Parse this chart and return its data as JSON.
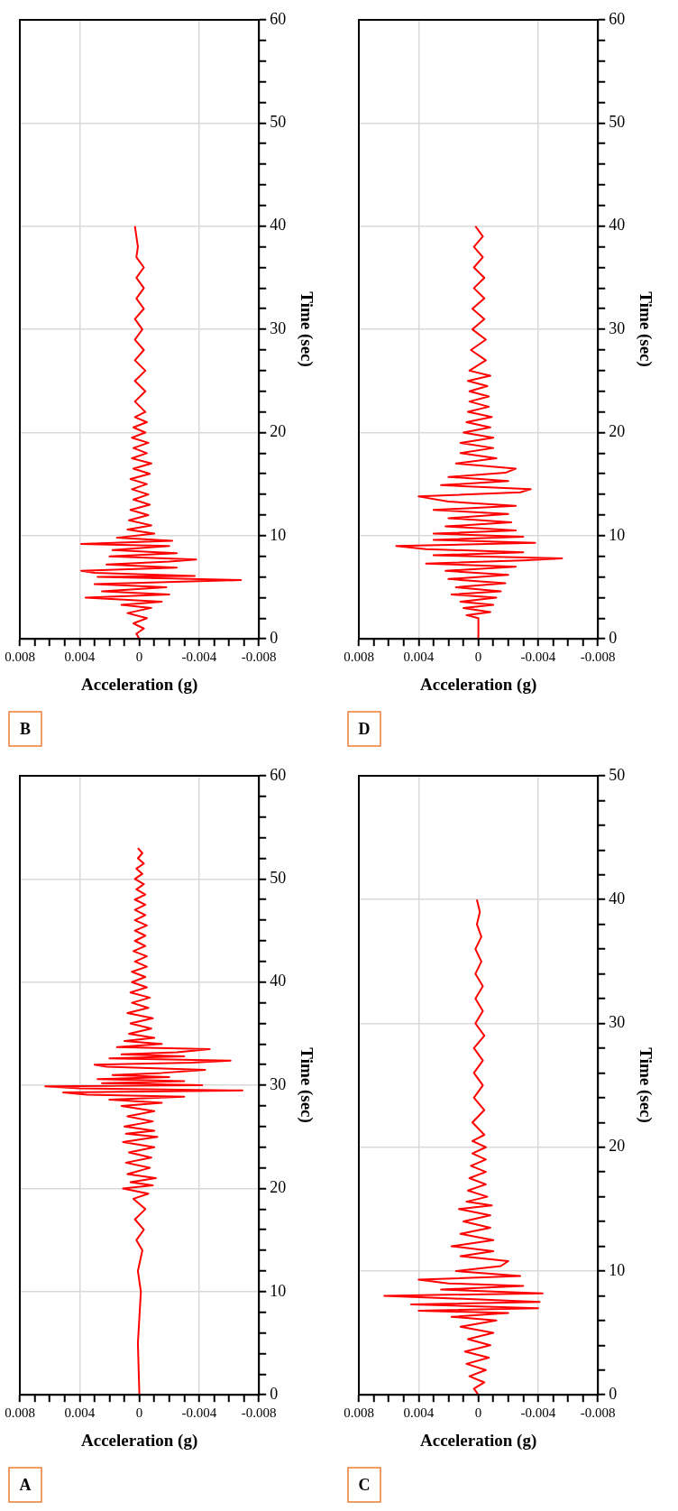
{
  "chart_data": [
    {
      "type": "line",
      "orientation": "horizontal",
      "title": "A",
      "xlabel": "Acceleration (g)",
      "ylabel": "Time (sec)",
      "grid": true,
      "xlim": [
        0.008,
        -0.008
      ],
      "ylim": [
        0,
        60
      ],
      "yticks": [
        0,
        {
          "value": 2,
          "label": null
        },
        {
          "value": 4,
          "label": null
        },
        {
          "value": 6,
          "label": null
        },
        {
          "value": 8,
          "label": null
        },
        10,
        {
          "value": 12,
          "label": null
        },
        {
          "value": 14,
          "label": null
        },
        {
          "value": 16,
          "label": null
        },
        {
          "value": 18,
          "label": null
        },
        20,
        {
          "value": 22,
          "label": null
        },
        {
          "value": 24,
          "label": null
        },
        {
          "value": 26,
          "label": null
        },
        {
          "value": 28,
          "label": null
        },
        30,
        {
          "value": 32,
          "label": null
        },
        {
          "value": 34,
          "label": null
        },
        {
          "value": 36,
          "label": null
        },
        {
          "value": 38,
          "label": null
        },
        40,
        {
          "value": 42,
          "label": null
        },
        {
          "value": 44,
          "label": null
        },
        {
          "value": 46,
          "label": null
        },
        {
          "value": 48,
          "label": null
        },
        50,
        {
          "value": 52,
          "label": null
        },
        {
          "value": 54,
          "label": null
        },
        {
          "value": 56,
          "label": null
        },
        {
          "value": 58,
          "label": null
        },
        60
      ],
      "xticks": [
        -0.008,
        {
          "value": -0.007,
          "label": null
        },
        {
          "value": -0.006,
          "label": null
        },
        {
          "value": -0.005,
          "label": null
        },
        -0.004,
        {
          "value": -0.003,
          "label": null
        },
        {
          "value": -0.002,
          "label": null
        },
        {
          "value": -0.001,
          "label": null
        },
        0,
        {
          "value": 0.001,
          "label": null
        },
        {
          "value": 0.002,
          "label": null
        },
        {
          "value": 0.003,
          "label": null
        },
        0.004,
        {
          "value": 0.005,
          "label": null
        },
        {
          "value": 0.006,
          "label": null
        },
        {
          "value": 0.007,
          "label": null
        },
        0.008
      ],
      "x": [
        0,
        5,
        10,
        12,
        14,
        15,
        16,
        17,
        18,
        19,
        19.5,
        20,
        20.3,
        20.6,
        21,
        21.4,
        22,
        22.5,
        23,
        23.5,
        24,
        24.5,
        25,
        25.3,
        25.6,
        26,
        26.5,
        27,
        27.5,
        28,
        28.3,
        28.6,
        28.9,
        29.1,
        29.3,
        29.5,
        29.7,
        29.9,
        30.0,
        30.2,
        30.4,
        30.6,
        30.8,
        31.0,
        31.2,
        31.5,
        31.8,
        32.0,
        32.2,
        32.4,
        32.6,
        32.8,
        33.0,
        33.2,
        33.5,
        33.7,
        34.0,
        34.3,
        34.6,
        35,
        35.5,
        36,
        36.5,
        37,
        37.5,
        38,
        38.5,
        39,
        39.5,
        40,
        40.5,
        41,
        41.5,
        42,
        42.5,
        43,
        43.5,
        44,
        44.5,
        45,
        45.5,
        46,
        46.5,
        47,
        47.5,
        48,
        48.5,
        49,
        49.5,
        50,
        50.5,
        51,
        51.5,
        52,
        52.5,
        53
      ],
      "series": [
        {
          "color": "#ff0000",
          "values": [
            0,
            0.0001,
            -0.0001,
            0.0001,
            -0.0002,
            0.0002,
            -0.0003,
            0.0003,
            -0.0004,
            0.0004,
            -0.0006,
            0.0011,
            -0.0009,
            0.0006,
            -0.0011,
            0.0008,
            -0.0007,
            0.0009,
            -0.0008,
            0.0007,
            -0.001,
            0.0011,
            -0.0012,
            0.0009,
            -0.001,
            0.001,
            -0.0009,
            0.0008,
            -0.001,
            0.0012,
            -0.0015,
            0.002,
            -0.003,
            0.0035,
            0.0051,
            -0.0069,
            0.004,
            0.0063,
            -0.0042,
            0.0025,
            -0.003,
            0.0028,
            -0.002,
            0.0018,
            -0.0015,
            -0.0044,
            0.0022,
            0.003,
            -0.0035,
            -0.0061,
            0.002,
            -0.003,
            0.0012,
            -0.0025,
            -0.0047,
            0.0015,
            -0.0015,
            0.001,
            -0.001,
            0.0007,
            -0.0008,
            0.0006,
            -0.0009,
            0.0008,
            -0.0006,
            0.0005,
            -0.0007,
            0.0006,
            -0.0005,
            0.0005,
            -0.0004,
            0.0005,
            -0.0005,
            0.0003,
            -0.0005,
            0.0004,
            -0.0004,
            0.0003,
            -0.0004,
            0.0003,
            -0.0005,
            0.0003,
            -0.0004,
            0.0003,
            -0.0004,
            0.0003,
            -0.0004,
            0.0002,
            -0.0003,
            0.0003,
            -0.0002,
            0.0002,
            -0.0003,
            0.0001,
            -0.0002,
            0.0001
          ]
        }
      ]
    },
    {
      "type": "line",
      "orientation": "horizontal",
      "title": "B",
      "xlabel": "Acceleration (g)",
      "ylabel": "Time (sec)",
      "grid": true,
      "xlim": [
        0.008,
        -0.008
      ],
      "ylim": [
        0,
        60
      ],
      "yticks": [
        0,
        {
          "value": 2,
          "label": null
        },
        {
          "value": 4,
          "label": null
        },
        {
          "value": 6,
          "label": null
        },
        {
          "value": 8,
          "label": null
        },
        10,
        {
          "value": 12,
          "label": null
        },
        {
          "value": 14,
          "label": null
        },
        {
          "value": 16,
          "label": null
        },
        {
          "value": 18,
          "label": null
        },
        20,
        {
          "value": 22,
          "label": null
        },
        {
          "value": 24,
          "label": null
        },
        {
          "value": 26,
          "label": null
        },
        {
          "value": 28,
          "label": null
        },
        30,
        {
          "value": 32,
          "label": null
        },
        {
          "value": 34,
          "label": null
        },
        {
          "value": 36,
          "label": null
        },
        {
          "value": 38,
          "label": null
        },
        40,
        {
          "value": 42,
          "label": null
        },
        {
          "value": 44,
          "label": null
        },
        {
          "value": 46,
          "label": null
        },
        {
          "value": 48,
          "label": null
        },
        50,
        {
          "value": 52,
          "label": null
        },
        {
          "value": 54,
          "label": null
        },
        {
          "value": 56,
          "label": null
        },
        {
          "value": 58,
          "label": null
        },
        60
      ],
      "xticks": [
        -0.008,
        {
          "value": -0.007,
          "label": null
        },
        {
          "value": -0.006,
          "label": null
        },
        {
          "value": -0.005,
          "label": null
        },
        -0.004,
        {
          "value": -0.003,
          "label": null
        },
        {
          "value": -0.002,
          "label": null
        },
        {
          "value": -0.001,
          "label": null
        },
        0,
        {
          "value": 0.001,
          "label": null
        },
        {
          "value": 0.002,
          "label": null
        },
        {
          "value": 0.003,
          "label": null
        },
        0.004,
        {
          "value": 0.005,
          "label": null
        },
        {
          "value": 0.006,
          "label": null
        },
        {
          "value": 0.007,
          "label": null
        },
        0.008
      ],
      "x": [
        0,
        0.5,
        1,
        1.5,
        2,
        2.5,
        3,
        3.3,
        3.6,
        4,
        4.3,
        4.6,
        5,
        5.3,
        5.7,
        6.0,
        6.1,
        6.4,
        6.6,
        6.9,
        7.2,
        7.5,
        7.7,
        8.0,
        8.3,
        8.6,
        9.0,
        9.2,
        9.5,
        9.8,
        10.2,
        10.6,
        11,
        11.5,
        12,
        12.5,
        13,
        13.5,
        14,
        14.5,
        15,
        15.5,
        16,
        16.5,
        17,
        17.5,
        18,
        18.5,
        19,
        19.5,
        20,
        20.5,
        21,
        21.5,
        22,
        23,
        24,
        25,
        26,
        27,
        28,
        29,
        30,
        31,
        32,
        33,
        34,
        35,
        36,
        37,
        38,
        39,
        40
      ],
      "series": [
        {
          "color": "#ff0000",
          "values": [
            0,
            0.0002,
            -0.0003,
            0.0004,
            -0.0005,
            0.0008,
            -0.0008,
            0.0012,
            -0.0015,
            0.0036,
            -0.002,
            0.0025,
            -0.0018,
            0.003,
            -0.0068,
            0.0028,
            -0.0037,
            0.003,
            0.0039,
            -0.0025,
            0.0022,
            -0.002,
            -0.0038,
            0.002,
            -0.0025,
            0.0018,
            -0.002,
            0.0039,
            -0.0022,
            0.0015,
            -0.001,
            0.0008,
            -0.0008,
            0.0007,
            -0.0006,
            0.0006,
            -0.0007,
            0.0004,
            -0.0006,
            0.0005,
            -0.0005,
            0.0006,
            -0.0007,
            0.0004,
            -0.0008,
            0.0005,
            -0.0005,
            0.0004,
            -0.0006,
            0.0005,
            -0.0004,
            0.0004,
            -0.0005,
            0.0003,
            -0.0004,
            0.0003,
            -0.0004,
            0.0003,
            -0.0004,
            0.0003,
            -0.0003,
            0.0003,
            -0.0002,
            0.0003,
            -0.0003,
            0.0002,
            -0.0003,
            0.0002,
            -0.0003,
            0.0002,
            0.0001,
            0.0002,
            0.0003
          ]
        }
      ]
    },
    {
      "type": "line",
      "orientation": "horizontal",
      "title": "C",
      "xlabel": "Acceleration (g)",
      "ylabel": "Time (sec)",
      "grid": true,
      "xlim": [
        0.008,
        -0.008
      ],
      "ylim": [
        0,
        50
      ],
      "yticks": [
        0,
        {
          "value": 2,
          "label": null
        },
        {
          "value": 4,
          "label": null
        },
        {
          "value": 6,
          "label": null
        },
        {
          "value": 8,
          "label": null
        },
        10,
        {
          "value": 12,
          "label": null
        },
        {
          "value": 14,
          "label": null
        },
        {
          "value": 16,
          "label": null
        },
        {
          "value": 18,
          "label": null
        },
        20,
        {
          "value": 22,
          "label": null
        },
        {
          "value": 24,
          "label": null
        },
        {
          "value": 26,
          "label": null
        },
        {
          "value": 28,
          "label": null
        },
        30,
        {
          "value": 32,
          "label": null
        },
        {
          "value": 34,
          "label": null
        },
        {
          "value": 36,
          "label": null
        },
        {
          "value": 38,
          "label": null
        },
        40,
        {
          "value": 42,
          "label": null
        },
        {
          "value": 44,
          "label": null
        },
        {
          "value": 46,
          "label": null
        },
        {
          "value": 48,
          "label": null
        },
        50
      ],
      "xticks": [
        -0.008,
        {
          "value": -0.007,
          "label": null
        },
        {
          "value": -0.006,
          "label": null
        },
        {
          "value": -0.005,
          "label": null
        },
        -0.004,
        {
          "value": -0.003,
          "label": null
        },
        {
          "value": -0.002,
          "label": null
        },
        {
          "value": -0.001,
          "label": null
        },
        0,
        {
          "value": 0.001,
          "label": null
        },
        {
          "value": 0.002,
          "label": null
        },
        {
          "value": 0.003,
          "label": null
        },
        0.004,
        {
          "value": 0.005,
          "label": null
        },
        {
          "value": 0.006,
          "label": null
        },
        {
          "value": 0.007,
          "label": null
        },
        0.008
      ],
      "x": [
        0,
        0.5,
        1,
        1.5,
        2,
        2.5,
        3,
        3.5,
        4,
        4.5,
        5,
        5.5,
        6,
        6.3,
        6.6,
        6.8,
        7.0,
        7.3,
        7.5,
        7.8,
        8.0,
        8.2,
        8.5,
        8.8,
        9.0,
        9.3,
        9.6,
        10,
        10.4,
        10.8,
        11.2,
        11.6,
        12,
        12.5,
        13,
        13.5,
        14,
        14.5,
        15,
        15.3,
        15.6,
        16,
        16.5,
        17,
        17.5,
        18,
        18.5,
        19,
        19.5,
        20,
        20.5,
        21,
        22,
        23,
        24,
        25,
        26,
        27,
        28,
        29,
        30,
        31,
        32,
        33,
        34,
        35,
        36,
        37,
        38,
        39,
        40
      ],
      "series": [
        {
          "color": "#ff0000",
          "values": [
            0,
            0.0003,
            -0.0004,
            0.0006,
            -0.0005,
            0.0008,
            -0.0007,
            0.0009,
            -0.0008,
            0.0007,
            -0.001,
            0.0012,
            -0.0012,
            0.0018,
            -0.002,
            0.004,
            -0.004,
            0.0045,
            -0.0041,
            0.002,
            0.0063,
            -0.0043,
            0.0025,
            -0.003,
            0.002,
            0.004,
            -0.0028,
            0.0015,
            -0.0015,
            -0.002,
            0.0012,
            -0.001,
            0.0018,
            -0.001,
            0.0012,
            -0.0008,
            0.001,
            -0.0008,
            0.0013,
            -0.0009,
            0.0008,
            -0.0006,
            0.0007,
            -0.0005,
            0.0006,
            -0.0005,
            0.0005,
            -0.0005,
            0.0004,
            -0.0005,
            0.0004,
            -0.0004,
            0.0004,
            -0.0004,
            0.0003,
            -0.0003,
            0.0003,
            -0.0003,
            0.0003,
            -0.0004,
            0.0002,
            -0.0003,
            0.0002,
            -0.0003,
            0.0002,
            -0.0002,
            0.0002,
            -0.0002,
            0.0001,
            -0.0001,
            0.0001
          ]
        }
      ]
    },
    {
      "type": "line",
      "orientation": "horizontal",
      "title": "D",
      "xlabel": "Acceleration (g)",
      "ylabel": "Time (sec)",
      "grid": true,
      "xlim": [
        0.008,
        -0.008
      ],
      "ylim": [
        0,
        60
      ],
      "yticks": [
        0,
        {
          "value": 2,
          "label": null
        },
        {
          "value": 4,
          "label": null
        },
        {
          "value": 6,
          "label": null
        },
        {
          "value": 8,
          "label": null
        },
        10,
        {
          "value": 12,
          "label": null
        },
        {
          "value": 14,
          "label": null
        },
        {
          "value": 16,
          "label": null
        },
        {
          "value": 18,
          "label": null
        },
        20,
        {
          "value": 22,
          "label": null
        },
        {
          "value": 24,
          "label": null
        },
        {
          "value": 26,
          "label": null
        },
        {
          "value": 28,
          "label": null
        },
        30,
        {
          "value": 32,
          "label": null
        },
        {
          "value": 34,
          "label": null
        },
        {
          "value": 36,
          "label": null
        },
        {
          "value": 38,
          "label": null
        },
        40,
        {
          "value": 42,
          "label": null
        },
        {
          "value": 44,
          "label": null
        },
        {
          "value": 46,
          "label": null
        },
        {
          "value": 48,
          "label": null
        },
        50,
        {
          "value": 52,
          "label": null
        },
        {
          "value": 54,
          "label": null
        },
        {
          "value": 56,
          "label": null
        },
        {
          "value": 58,
          "label": null
        },
        60
      ],
      "xticks": [
        -0.008,
        {
          "value": -0.007,
          "label": null
        },
        {
          "value": -0.006,
          "label": null
        },
        {
          "value": -0.005,
          "label": null
        },
        -0.004,
        {
          "value": -0.003,
          "label": null
        },
        {
          "value": -0.002,
          "label": null
        },
        {
          "value": -0.001,
          "label": null
        },
        0,
        {
          "value": 0.001,
          "label": null
        },
        {
          "value": 0.002,
          "label": null
        },
        {
          "value": 0.003,
          "label": null
        },
        0.004,
        {
          "value": 0.005,
          "label": null
        },
        {
          "value": 0.006,
          "label": null
        },
        {
          "value": 0.007,
          "label": null
        },
        0.008
      ],
      "x": [
        0,
        2,
        2.3,
        2.6,
        3,
        3.3,
        3.6,
        4,
        4.3,
        4.6,
        5,
        5.4,
        5.8,
        6.2,
        6.6,
        7.0,
        7.3,
        7.6,
        7.8,
        8.1,
        8.4,
        8.7,
        9.0,
        9.3,
        9.6,
        9.9,
        10.2,
        10.5,
        10.9,
        11.3,
        11.7,
        12.1,
        12.5,
        12.9,
        13.3,
        13.8,
        14.2,
        14.5,
        14.9,
        15.3,
        15.7,
        16.1,
        16.5,
        17,
        17.5,
        18,
        18.5,
        19,
        19.5,
        20,
        20.5,
        21,
        21.5,
        22,
        22.5,
        23,
        23.5,
        24,
        24.5,
        25,
        25.5,
        26,
        27,
        28,
        29,
        30,
        31,
        32,
        33,
        34,
        35,
        36,
        37,
        38,
        39,
        40
      ],
      "series": [
        {
          "color": "#ff0000",
          "values": [
            0,
            0,
            0.0008,
            -0.0008,
            0.001,
            -0.001,
            0.0012,
            -0.0012,
            0.0018,
            -0.0015,
            0.0015,
            -0.0018,
            0.002,
            -0.002,
            0.0022,
            -0.0025,
            0.0035,
            -0.003,
            -0.0056,
            0.003,
            -0.003,
            0.0035,
            0.0055,
            -0.0038,
            0.003,
            -0.003,
            0.003,
            -0.0025,
            0.0022,
            -0.0022,
            0.002,
            -0.002,
            0.003,
            -0.0025,
            0.002,
            0.004,
            -0.0028,
            -0.0035,
            0.0025,
            -0.002,
            0.002,
            -0.0018,
            -0.0025,
            0.0015,
            -0.0012,
            0.0012,
            -0.001,
            0.0012,
            -0.001,
            0.001,
            -0.0008,
            0.0008,
            -0.0009,
            0.0007,
            -0.0007,
            0.0006,
            -0.0007,
            0.0006,
            -0.0006,
            0.0007,
            -0.0008,
            0.0006,
            -0.0005,
            0.0005,
            -0.0005,
            0.0004,
            -0.0004,
            0.0004,
            -0.0004,
            0.0003,
            -0.0004,
            0.0003,
            -0.0003,
            0.0003,
            -0.0003,
            0.0002
          ]
        }
      ]
    }
  ]
}
